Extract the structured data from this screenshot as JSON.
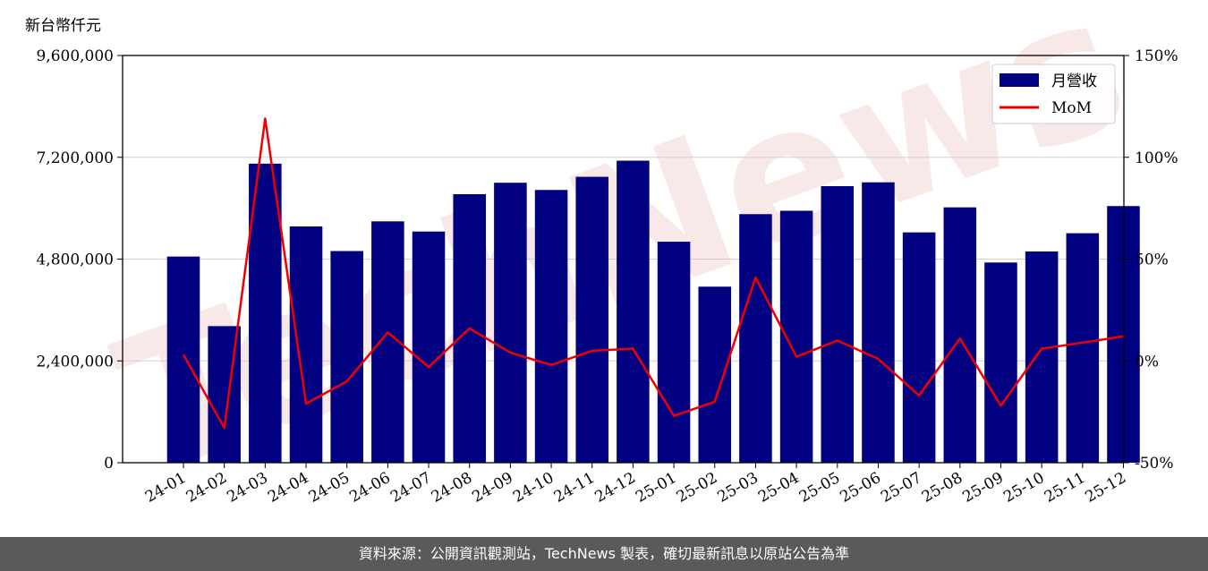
{
  "chart_data": {
    "type": "bar",
    "unit_label": "新台幣仟元",
    "categories": [
      "24-01",
      "24-02",
      "24-03",
      "24-04",
      "24-05",
      "24-06",
      "24-07",
      "24-08",
      "24-09",
      "24-10",
      "24-11",
      "24-12",
      "25-01",
      "25-02",
      "25-03",
      "25-04",
      "25-05",
      "25-06",
      "25-07",
      "25-08",
      "25-09",
      "25-10",
      "25-11",
      "25-12"
    ],
    "series": [
      {
        "name": "月營收",
        "axis": "left",
        "type": "bar",
        "color": "#000080",
        "values": [
          4860000,
          3220000,
          7050000,
          5570000,
          4990000,
          5690000,
          5450000,
          6330000,
          6600000,
          6430000,
          6740000,
          7120000,
          5210000,
          4150000,
          5860000,
          5940000,
          6520000,
          6610000,
          5430000,
          6020000,
          4720000,
          4980000,
          5410000,
          6050000
        ]
      },
      {
        "name": "MoM",
        "axis": "right",
        "type": "line",
        "color": "#ee0000",
        "values": [
          3,
          -33,
          119,
          -21,
          -10,
          14,
          -3,
          16,
          4,
          -2,
          5,
          6,
          -27,
          -20,
          41,
          2,
          10,
          1,
          -17,
          11,
          -22,
          6,
          9,
          12
        ]
      }
    ],
    "left_axis": {
      "min": 0,
      "max": 9600000,
      "ticks": [
        "0",
        "2,400,000",
        "4,800,000",
        "7,200,000",
        "9,600,000"
      ]
    },
    "right_axis": {
      "min": -50,
      "max": 150,
      "ticks": [
        "-50%",
        "0%",
        "50%",
        "100%",
        "150%"
      ]
    },
    "grid": true,
    "legend_position": "top-right"
  },
  "watermark": "TechNews",
  "footer_text": "資料來源：公開資訊觀測站，TechNews 製表，確切最新訊息以原站公告為準"
}
